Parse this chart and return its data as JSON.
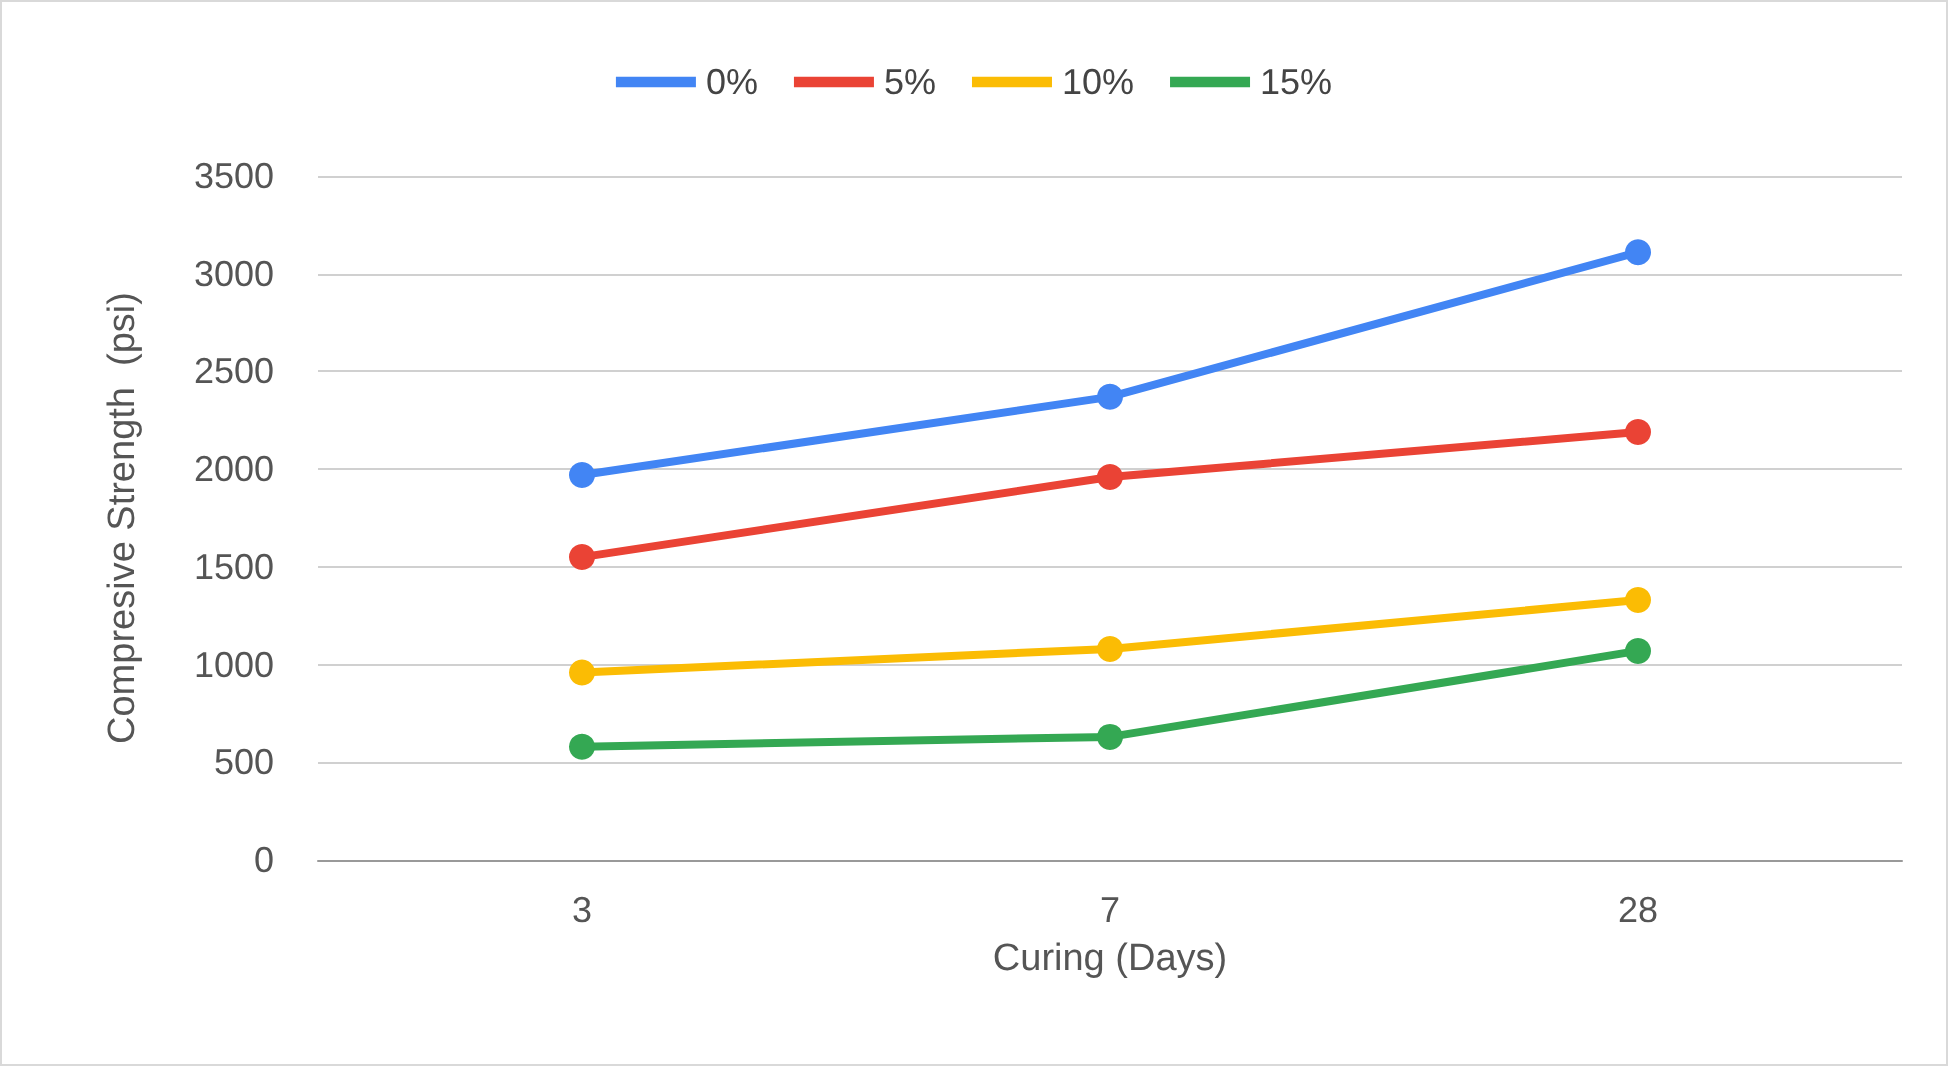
{
  "chart_data": {
    "type": "line",
    "xlabel": "Curing (Days)",
    "ylabel": "Compresive Strength  (psi)",
    "categories": [
      "3",
      "7",
      "28"
    ],
    "series": [
      {
        "name": "0%",
        "color": "#4285f4",
        "values": [
          1970,
          2370,
          3110
        ]
      },
      {
        "name": "5%",
        "color": "#ea4335",
        "values": [
          1550,
          1960,
          2190
        ]
      },
      {
        "name": "10%",
        "color": "#fbbc04",
        "values": [
          960,
          1080,
          1330
        ]
      },
      {
        "name": "15%",
        "color": "#34a853",
        "values": [
          580,
          630,
          1070
        ]
      }
    ],
    "ylim": [
      0,
      3500
    ],
    "yticks": [
      0,
      500,
      1000,
      1500,
      2000,
      2500,
      3000,
      3500
    ],
    "grid": "y",
    "legend": "top",
    "marker": "circle",
    "line_style": "solid"
  }
}
